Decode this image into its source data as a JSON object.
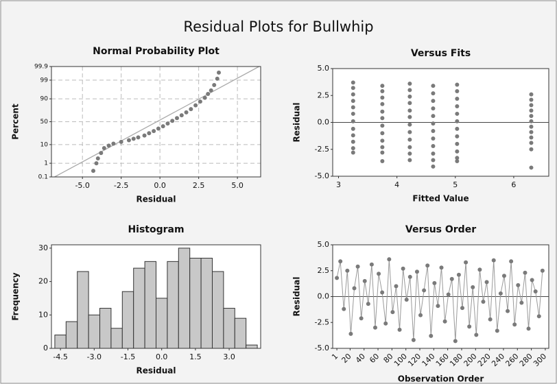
{
  "title": "Residual Plots for Bullwhip",
  "chart_data": [
    {
      "type": "probability",
      "title": "Normal Probability Plot",
      "xlabel": "Residual",
      "ylabel": "Percent",
      "color": "#7a7a7a",
      "grid": true,
      "xlim": [
        -7,
        6.5
      ],
      "xticks": [
        {
          "value": -5,
          "label": "-5.0"
        },
        {
          "value": -2.5,
          "label": "-2.5"
        },
        {
          "value": 0,
          "label": "0.0"
        },
        {
          "value": 2.5,
          "label": "2.5"
        },
        {
          "value": 5,
          "label": "5.0"
        }
      ],
      "ylim": [
        0.1,
        99.9
      ],
      "yticks": [
        0.1,
        1,
        10,
        50,
        90,
        99,
        99.9
      ],
      "x": [
        -4.3,
        -4.1,
        -4.0,
        -3.8,
        -3.6,
        -3.3,
        -3.0,
        -2.5,
        -2.0,
        -1.7,
        -1.4,
        -1.0,
        -0.7,
        -0.4,
        -0.1,
        0.2,
        0.5,
        0.8,
        1.1,
        1.4,
        1.7,
        2.0,
        2.3,
        2.6,
        2.9,
        3.1,
        3.3,
        3.5,
        3.7,
        3.8
      ],
      "values": [
        0.3,
        1,
        2,
        4,
        7,
        9,
        11,
        13,
        15,
        17,
        19,
        22,
        26,
        30,
        35,
        40,
        46,
        52,
        58,
        64,
        70,
        76,
        82,
        87,
        91,
        94,
        96,
        98,
        99.2,
        99.7
      ],
      "fit_line": {
        "x": [
          -6.8,
          6.4
        ],
        "y": [
          0.1,
          99.9
        ],
        "color": "#aaaaaa"
      }
    },
    {
      "type": "scatter",
      "title": "Versus Fits",
      "xlabel": "Fitted Value",
      "ylabel": "Residual",
      "color": "#7a7a7a",
      "grid": false,
      "hline": 0,
      "xlim": [
        2.9,
        6.6
      ],
      "xticks": [
        3,
        4,
        5,
        6
      ],
      "ylim": [
        -5,
        5
      ],
      "yticks": [
        {
          "value": -5,
          "label": "-5.0"
        },
        {
          "value": -2.5,
          "label": "-2.5"
        },
        {
          "value": 0,
          "label": "0.0"
        },
        {
          "value": 2.5,
          "label": "2.5"
        },
        {
          "value": 5,
          "label": "5.0"
        }
      ],
      "x": [
        3.25,
        3.25,
        3.25,
        3.25,
        3.25,
        3.25,
        3.25,
        3.25,
        3.25,
        3.25,
        3.25,
        3.25,
        3.75,
        3.75,
        3.75,
        3.75,
        3.75,
        3.75,
        3.75,
        3.75,
        3.75,
        3.75,
        3.75,
        3.75,
        4.22,
        4.22,
        4.22,
        4.22,
        4.22,
        4.22,
        4.22,
        4.22,
        4.22,
        4.22,
        4.22,
        4.22,
        4.62,
        4.62,
        4.62,
        4.62,
        4.62,
        4.62,
        4.62,
        4.62,
        4.62,
        4.62,
        4.62,
        4.62,
        5.03,
        5.03,
        5.03,
        5.03,
        5.03,
        5.03,
        5.03,
        5.03,
        5.03,
        5.03,
        5.03,
        5.03,
        6.3,
        6.3,
        6.3,
        6.3,
        6.3,
        6.3,
        6.3,
        6.3,
        6.3,
        6.3,
        6.3,
        6.3
      ],
      "values": [
        3.7,
        3.2,
        2.6,
        2.0,
        1.4,
        0.8,
        0.1,
        -0.6,
        -1.2,
        -1.8,
        -2.4,
        -2.8,
        3.4,
        2.9,
        2.3,
        1.7,
        1.0,
        0.4,
        -0.3,
        -1.0,
        -1.7,
        -2.3,
        -2.8,
        -3.6,
        3.6,
        3.0,
        2.4,
        1.8,
        1.1,
        0.5,
        -0.2,
        -0.9,
        -1.6,
        -2.3,
        -2.9,
        -3.5,
        3.4,
        2.7,
        2.0,
        1.3,
        0.6,
        -0.1,
        -0.8,
        -1.5,
        -2.2,
        -2.9,
        -3.5,
        -4.1,
        3.5,
        2.9,
        2.2,
        1.5,
        0.8,
        0.1,
        -0.6,
        -1.3,
        -2.0,
        -2.7,
        -3.3,
        -3.6,
        2.6,
        2.1,
        1.6,
        1.1,
        0.6,
        0.1,
        -0.4,
        -0.9,
        -1.4,
        -1.9,
        -2.5,
        -4.2
      ]
    },
    {
      "type": "histogram",
      "title": "Histogram",
      "xlabel": "Residual",
      "ylabel": "Frequency",
      "color": "#c8c8c8",
      "grid": false,
      "xlim": [
        -4.9,
        4.4
      ],
      "xticks": [
        -4.5,
        {
          "value": -3,
          "label": "-3.0"
        },
        {
          "value": -1.5,
          "label": "-1.5"
        },
        {
          "value": 0,
          "label": "0.0"
        },
        1.5,
        {
          "value": 3,
          "label": "3.0"
        }
      ],
      "ylim": [
        0,
        31
      ],
      "yticks": [
        0,
        10,
        20,
        30
      ],
      "bins": [
        -4.75,
        -4.25,
        -3.75,
        -3.25,
        -2.75,
        -2.25,
        -1.75,
        -1.25,
        -0.75,
        -0.25,
        0.25,
        0.75,
        1.25,
        1.75,
        2.25,
        2.75,
        3.25,
        3.75,
        4.25
      ],
      "values": [
        4,
        8,
        23,
        10,
        12,
        6,
        17,
        24,
        26,
        15,
        26,
        30,
        27,
        27,
        23,
        12,
        9,
        1
      ]
    },
    {
      "type": "line",
      "title": "Versus Order",
      "xlabel": "Observation Order",
      "ylabel": "Residual",
      "color": "#7a7a7a",
      "grid": false,
      "hline": 0,
      "xlim": [
        -5,
        305
      ],
      "xticks": [
        1,
        20,
        40,
        60,
        80,
        100,
        120,
        140,
        160,
        180,
        200,
        220,
        240,
        260,
        280,
        300
      ],
      "ylim": [
        -5,
        5
      ],
      "yticks": [
        {
          "value": -5,
          "label": "-5.0"
        },
        {
          "value": -2.5,
          "label": "-2.5"
        },
        {
          "value": 0,
          "label": "0.0"
        },
        {
          "value": 2.5,
          "label": "2.5"
        },
        {
          "value": 5,
          "label": "5.0"
        }
      ],
      "x": [
        1,
        6,
        11,
        16,
        21,
        26,
        31,
        36,
        41,
        46,
        51,
        56,
        61,
        66,
        71,
        76,
        81,
        86,
        91,
        96,
        101,
        106,
        111,
        116,
        121,
        126,
        131,
        136,
        141,
        146,
        151,
        156,
        161,
        166,
        171,
        176,
        181,
        186,
        191,
        196,
        201,
        206,
        211,
        216,
        221,
        226,
        231,
        236,
        241,
        246,
        251,
        256,
        261,
        266,
        271,
        276,
        281,
        286,
        291,
        296
      ],
      "values": [
        1.8,
        3.4,
        -1.2,
        2.5,
        -3.6,
        0.8,
        2.9,
        -2.1,
        1.5,
        -0.7,
        3.1,
        -3.0,
        2.2,
        0.4,
        -2.6,
        3.6,
        -1.5,
        1.0,
        -3.2,
        2.7,
        -0.3,
        1.9,
        -4.2,
        2.4,
        -1.8,
        0.6,
        3.0,
        -3.8,
        1.3,
        -0.9,
        2.8,
        -2.4,
        0.2,
        1.7,
        -4.3,
        2.1,
        -1.1,
        3.3,
        -2.9,
        0.9,
        -3.7,
        2.6,
        -0.5,
        1.4,
        -2.2,
        3.5,
        -3.3,
        0.3,
        2.0,
        -1.4,
        3.4,
        -2.7,
        1.1,
        -0.6,
        2.3,
        -3.1,
        1.6,
        0.5,
        -1.9,
        2.5
      ]
    }
  ]
}
